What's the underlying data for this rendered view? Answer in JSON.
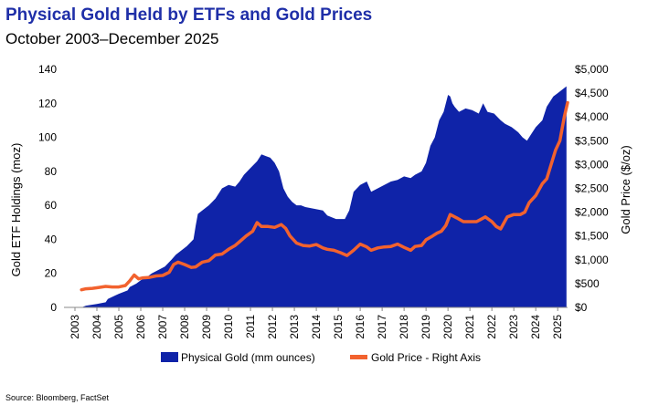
{
  "header": {
    "title": "Physical Gold Held by ETFs and Gold Prices",
    "subtitle": "October 2003–December 2025"
  },
  "source": "Source: Bloomberg, FactSet",
  "colors": {
    "holdings": "#0f23a8",
    "price": "#f2622e",
    "title": "#1f2fa8"
  },
  "chart_data": {
    "type": "area",
    "title": "Physical Gold Held by ETFs and Gold Prices",
    "subtitle": "October 2003–December 2025",
    "xlabel": "",
    "ylabel": "Gold ETF Holdings (moz)",
    "y2label": "Gold Price ($/oz)",
    "xlim": [
      2003,
      2025.95
    ],
    "ylim": [
      0,
      140
    ],
    "y2lim": [
      0,
      5000
    ],
    "x_ticks": [
      "2003",
      "2004",
      "2005",
      "2006",
      "2007",
      "2008",
      "2009",
      "2010",
      "2011",
      "2012",
      "2013",
      "2014",
      "2015",
      "2016",
      "2017",
      "2018",
      "2019",
      "2020",
      "2021",
      "2022",
      "2023",
      "2024",
      "2025"
    ],
    "y_ticks": [
      "0",
      "20",
      "40",
      "60",
      "80",
      "100",
      "120",
      "140"
    ],
    "y2_ticks": [
      "$0",
      "$500",
      "$1,000",
      "$1,500",
      "$2,000",
      "$2,500",
      "$3,000",
      "$3,500",
      "$4,000",
      "$4,500",
      "$5,000"
    ],
    "legend": {
      "position": "bottom",
      "items": [
        "Physical Gold (mm ounces)",
        "Gold Price - Right Axis"
      ]
    },
    "series": [
      {
        "name": "Physical Gold (mm ounces)",
        "axis": "left",
        "type": "area",
        "x": [
          2003.8,
          2004.0,
          2004.5,
          2004.9,
          2005.0,
          2005.5,
          2005.9,
          2006.0,
          2006.3,
          2006.5,
          2006.8,
          2007.0,
          2007.3,
          2007.6,
          2007.9,
          2008.1,
          2008.3,
          2008.6,
          2008.9,
          2009.0,
          2009.1,
          2009.2,
          2009.4,
          2009.6,
          2009.9,
          2010.2,
          2010.5,
          2010.8,
          2011.0,
          2011.2,
          2011.5,
          2011.8,
          2012.0,
          2012.2,
          2012.4,
          2012.6,
          2012.8,
          2013.0,
          2013.2,
          2013.4,
          2013.6,
          2013.8,
          2014.0,
          2014.4,
          2014.8,
          2015.0,
          2015.4,
          2015.8,
          2016.0,
          2016.2,
          2016.5,
          2016.8,
          2017.0,
          2017.3,
          2017.6,
          2017.9,
          2018.2,
          2018.5,
          2018.8,
          2019.0,
          2019.3,
          2019.5,
          2019.7,
          2019.9,
          2020.1,
          2020.3,
          2020.5,
          2020.6,
          2020.7,
          2020.8,
          2021.0,
          2021.3,
          2021.6,
          2021.9,
          2022.1,
          2022.3,
          2022.6,
          2022.9,
          2023.1,
          2023.4,
          2023.7,
          2023.9,
          2024.1,
          2024.3,
          2024.5,
          2024.8,
          2025.0,
          2025.3,
          2025.5,
          2025.7,
          2025.9
        ],
        "y": [
          0,
          1,
          2,
          3,
          5,
          8,
          10,
          12,
          14,
          16,
          18,
          20,
          22,
          24,
          28,
          31,
          33,
          36,
          40,
          48,
          55,
          56,
          58,
          60,
          64,
          70,
          72,
          71,
          74,
          78,
          82,
          86,
          90,
          89,
          88,
          85,
          80,
          70,
          65,
          62,
          60,
          60,
          59,
          58,
          57,
          54,
          52,
          52,
          57,
          68,
          72,
          74,
          68,
          70,
          72,
          74,
          75,
          77,
          76,
          78,
          80,
          85,
          95,
          100,
          110,
          115,
          125,
          124,
          120,
          118,
          115,
          117,
          116,
          114,
          120,
          115,
          114,
          110,
          108,
          106,
          103,
          100,
          98,
          102,
          106,
          110,
          118,
          124,
          126,
          128,
          130
        ]
      },
      {
        "name": "Gold Price - Right Axis",
        "axis": "right",
        "type": "line",
        "x": [
          2003.8,
          2004.0,
          2004.3,
          2004.6,
          2004.9,
          2005.2,
          2005.5,
          2005.8,
          2006.0,
          2006.2,
          2006.4,
          2006.6,
          2006.9,
          2007.2,
          2007.5,
          2007.8,
          2008.0,
          2008.2,
          2008.5,
          2008.8,
          2009.0,
          2009.3,
          2009.6,
          2009.9,
          2010.2,
          2010.5,
          2010.8,
          2011.0,
          2011.3,
          2011.6,
          2011.8,
          2012.0,
          2012.3,
          2012.6,
          2012.9,
          2013.1,
          2013.3,
          2013.6,
          2013.9,
          2014.2,
          2014.5,
          2014.8,
          2015.0,
          2015.3,
          2015.6,
          2015.9,
          2016.2,
          2016.5,
          2016.8,
          2017.0,
          2017.3,
          2017.6,
          2017.9,
          2018.2,
          2018.5,
          2018.8,
          2019.0,
          2019.3,
          2019.5,
          2019.8,
          2020.0,
          2020.2,
          2020.4,
          2020.6,
          2020.9,
          2021.2,
          2021.5,
          2021.8,
          2022.0,
          2022.2,
          2022.5,
          2022.7,
          2022.9,
          2023.2,
          2023.5,
          2023.8,
          2024.0,
          2024.2,
          2024.5,
          2024.8,
          2025.0,
          2025.2,
          2025.4,
          2025.6,
          2025.8,
          2025.95
        ],
        "y": [
          370,
          390,
          400,
          420,
          440,
          430,
          430,
          460,
          560,
          680,
          600,
          620,
          630,
          660,
          670,
          740,
          900,
          950,
          900,
          840,
          850,
          950,
          980,
          1100,
          1120,
          1220,
          1300,
          1380,
          1500,
          1600,
          1780,
          1700,
          1700,
          1680,
          1740,
          1660,
          1500,
          1350,
          1300,
          1290,
          1320,
          1250,
          1220,
          1200,
          1150,
          1090,
          1200,
          1330,
          1270,
          1200,
          1250,
          1270,
          1280,
          1330,
          1260,
          1200,
          1280,
          1300,
          1420,
          1500,
          1560,
          1600,
          1720,
          1950,
          1880,
          1800,
          1800,
          1800,
          1850,
          1900,
          1800,
          1700,
          1650,
          1900,
          1950,
          1950,
          2000,
          2200,
          2350,
          2600,
          2700,
          3000,
          3300,
          3500,
          4000,
          4300
        ]
      }
    ]
  }
}
